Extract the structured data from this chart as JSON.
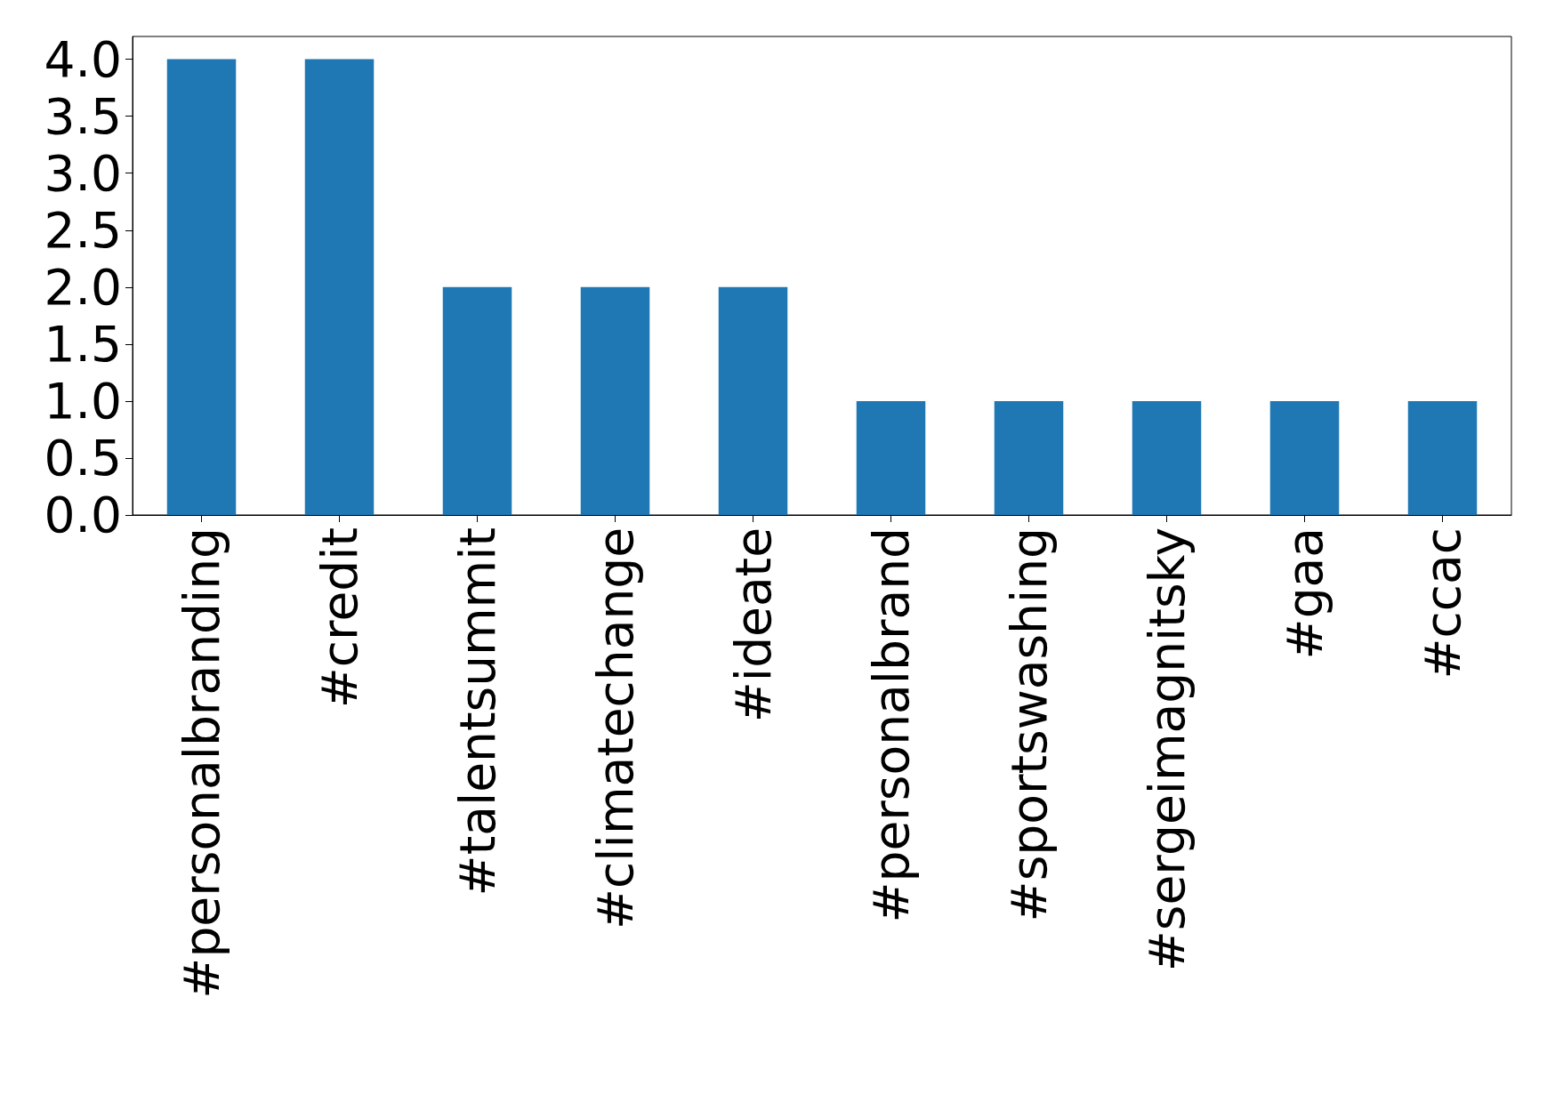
{
  "chart_data": {
    "type": "bar",
    "categories": [
      "#personalbranding",
      "#credit",
      "#talentsummit",
      "#climatechange",
      "#ideate",
      "#personalbrand",
      "#sportswashing",
      "#sergeimagnitsky",
      "#gaa",
      "#ccac"
    ],
    "values": [
      4,
      4,
      2,
      2,
      2,
      1,
      1,
      1,
      1,
      1
    ],
    "color": "#1f77b4",
    "ylim": [
      0,
      4.2
    ],
    "yticks": [
      {
        "value": 0,
        "label": "0.0"
      },
      {
        "value": 0.5,
        "label": "0.5"
      },
      {
        "value": 1,
        "label": "1.0"
      },
      {
        "value": 1.5,
        "label": "1.5"
      },
      {
        "value": 2,
        "label": "2.0"
      },
      {
        "value": 2.5,
        "label": "2.5"
      },
      {
        "value": 3,
        "label": "3.0"
      },
      {
        "value": 3.5,
        "label": "3.5"
      },
      {
        "value": 4,
        "label": "4.0"
      }
    ],
    "grid": false
  }
}
